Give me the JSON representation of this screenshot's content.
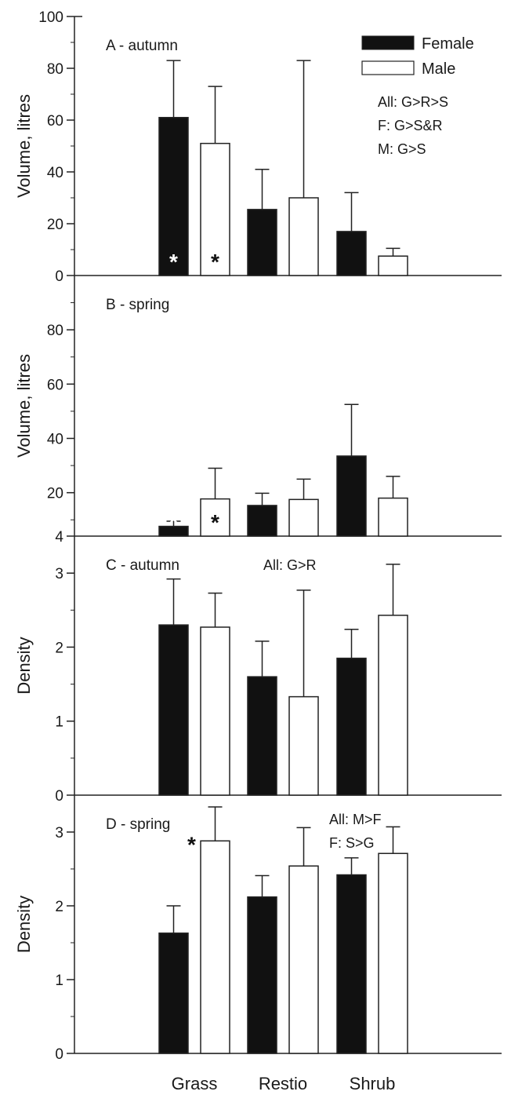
{
  "chart_data": {
    "type": "bar",
    "categories": [
      "Grass",
      "Restio",
      "Shrub"
    ],
    "legend": [
      {
        "name": "Female",
        "color": "#111111"
      },
      {
        "name": "Male",
        "color": "#ffffff"
      }
    ],
    "panels": [
      {
        "label": "A - autumn",
        "ylabel": "Volume, litres",
        "ylim": [
          0,
          100
        ],
        "yticks": [
          "0",
          "20",
          "40",
          "60",
          "80",
          "100"
        ],
        "tick_values": [
          0,
          20,
          40,
          60,
          80,
          100
        ],
        "series": [
          {
            "name": "Female",
            "values": [
              61,
              25.5,
              17
            ],
            "errors": [
              83,
              41,
              32
            ]
          },
          {
            "name": "Male",
            "values": [
              51,
              30,
              7.5
            ],
            "errors": [
              73,
              83,
              10.5
            ]
          }
        ],
        "notes": [
          "All: G>R>S",
          "F: G>S&R",
          "M: G>S"
        ],
        "stars": [
          {
            "series": 0,
            "category": 0,
            "text": "*",
            "color": "#ffffff"
          },
          {
            "series": 1,
            "category": 0,
            "text": "*",
            "color": "#111111"
          }
        ]
      },
      {
        "label": "B - spring",
        "ylabel": "Volume, litres",
        "ylim": [
          4,
          100
        ],
        "yticks": [
          "4",
          "20",
          "40",
          "60",
          "80"
        ],
        "tick_values": [
          4,
          20,
          40,
          60,
          80
        ],
        "series": [
          {
            "name": "Female",
            "values": [
              7.6,
              15.3,
              33.5
            ],
            "errors": [
              9.5,
              19.8,
              52.5
            ]
          },
          {
            "name": "Male",
            "values": [
              17.7,
              17.5,
              18
            ],
            "errors": [
              29,
              25,
              26
            ]
          }
        ],
        "notes": [],
        "stars": [
          {
            "series": 0,
            "category": 0,
            "text": "*",
            "color": "#ffffff"
          },
          {
            "series": 1,
            "category": 0,
            "text": "*",
            "color": "#111111"
          }
        ]
      },
      {
        "label": "C - autumn",
        "ylabel": "Density",
        "ylim": [
          0,
          3.5
        ],
        "yticks": [
          "0",
          "1",
          "2",
          "3"
        ],
        "tick_values": [
          0,
          1,
          2,
          3
        ],
        "series": [
          {
            "name": "Female",
            "values": [
              2.3,
              1.6,
              1.85
            ],
            "errors": [
              2.92,
              2.08,
              2.24
            ]
          },
          {
            "name": "Male",
            "values": [
              2.27,
              1.33,
              2.43
            ],
            "errors": [
              2.73,
              2.77,
              3.12
            ]
          }
        ],
        "notes": [
          "All: G>R"
        ],
        "stars": []
      },
      {
        "label": "D - spring",
        "ylabel": "Density",
        "ylim": [
          0,
          3.5
        ],
        "yticks": [
          "0",
          "1",
          "2",
          "3"
        ],
        "tick_values": [
          0,
          1,
          2,
          3
        ],
        "series": [
          {
            "name": "Female",
            "values": [
              1.63,
              2.12,
              2.42
            ],
            "errors": [
              2.0,
              2.41,
              2.65
            ]
          },
          {
            "name": "Male",
            "values": [
              2.88,
              2.54,
              2.71
            ],
            "errors": [
              3.34,
              3.06,
              3.07
            ]
          }
        ],
        "notes": [
          "All: M>F",
          "F: S>G"
        ],
        "stars": [
          {
            "series": 1,
            "category": 0,
            "text": "*",
            "color": "#111111",
            "above": true
          }
        ]
      }
    ]
  }
}
